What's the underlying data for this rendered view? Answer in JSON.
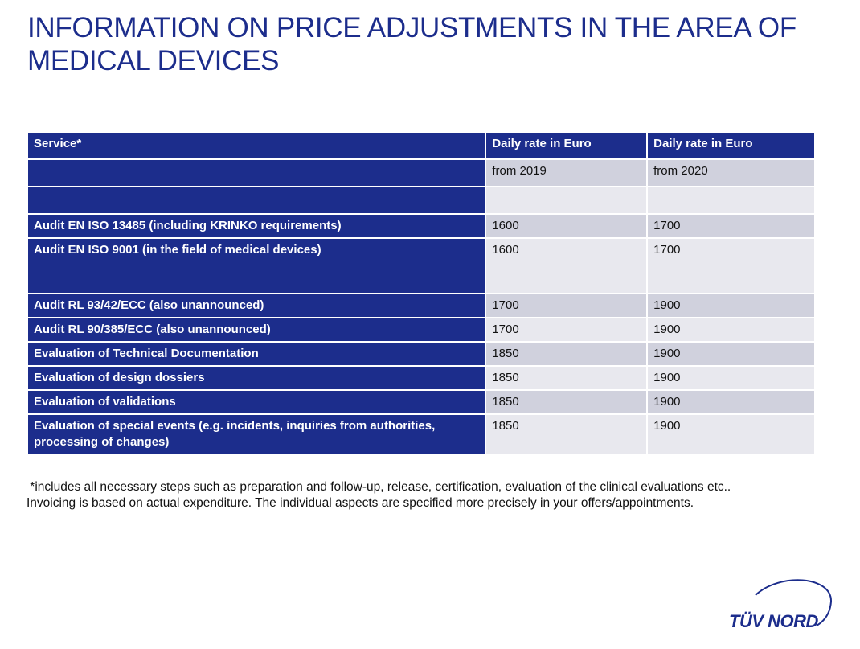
{
  "header": {
    "title": "INFORMATION ON PRICE ADJUSTMENTS IN THE AREA OF MEDICAL DEVICES"
  },
  "table": {
    "headers": [
      "Service*",
      "Daily rate in Euro",
      "Daily rate in Euro"
    ],
    "subheader": [
      "",
      "from 2019",
      "from 2020"
    ],
    "rows": [
      {
        "service": "",
        "rate_2019": "",
        "rate_2020": "",
        "height": "blank"
      },
      {
        "service": "Audit EN ISO 13485 (including KRINKO requirements)",
        "rate_2019": "1600",
        "rate_2020": "1700"
      },
      {
        "service": "Audit EN ISO 9001 (in the field of medical devices)",
        "rate_2019": "1600",
        "rate_2020": "1700"
      },
      {
        "service": "Audit RL 93/42/ECC (also unannounced)",
        "rate_2019": "1700",
        "rate_2020": "1900"
      },
      {
        "service": "Audit RL 90/385/ECC (also unannounced)",
        "rate_2019": "1700",
        "rate_2020": "1900"
      },
      {
        "service": "Evaluation of Technical Documentation",
        "rate_2019": "1850",
        "rate_2020": "1900"
      },
      {
        "service": "Evaluation of design dossiers",
        "rate_2019": "1850",
        "rate_2020": "1900"
      },
      {
        "service": "Evaluation of validations",
        "rate_2019": "1850",
        "rate_2020": "1900"
      },
      {
        "service": "Evaluation of special events (e.g. incidents, inquiries from authorities, processing of changes)",
        "rate_2019": "1850",
        "rate_2020": "1900"
      }
    ]
  },
  "footnote": {
    "line1": " *includes all necessary steps such as preparation and follow-up, release, certification, evaluation of the clinical evaluations etc..",
    "line2": "Invoicing is based on actual expenditure. The individual aspects are specified more precisely in your offers/appointments."
  },
  "logo": {
    "text": "TÜV NORD",
    "icon": "tuv-nord-logo"
  },
  "colors": {
    "brand_blue": "#1c2d8c",
    "row_odd": "#d0d1dd",
    "row_even": "#e8e8ee"
  }
}
